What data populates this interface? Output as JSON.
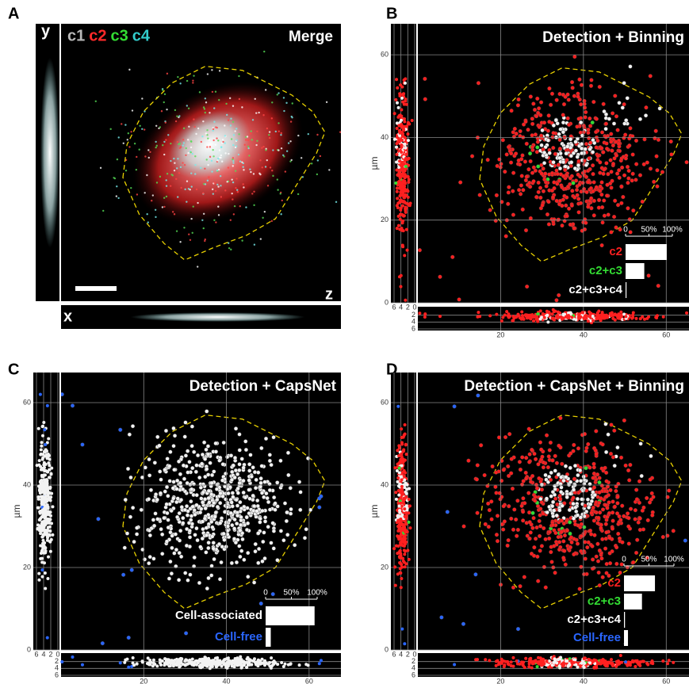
{
  "panels": [
    {
      "label": "A",
      "title": "Merge",
      "channels": [
        {
          "name": "c1",
          "color": "#b8b8b8"
        },
        {
          "name": "c2",
          "color": "#ff2a2a"
        },
        {
          "name": "c3",
          "color": "#33dd33"
        },
        {
          "name": "c4",
          "color": "#33cccc"
        }
      ],
      "y_label": "y",
      "x_label": "x",
      "z_label": "z"
    },
    {
      "label": "B",
      "title": "Detection + Binning",
      "y_axis_label": "µm",
      "xlim": [
        0,
        65.5
      ],
      "ylim": [
        0,
        67.5
      ],
      "xticks": [
        20,
        40,
        60
      ],
      "yticks": [
        0,
        20,
        40,
        60
      ],
      "zticks_side": [
        6,
        4,
        2,
        0
      ],
      "zticks_bottom": [
        2,
        4,
        6
      ],
      "inset": {
        "ticks": [
          0,
          {
            "value": 50,
            "label": "50%"
          },
          {
            "value": 100,
            "label": "100%"
          }
        ],
        "categories": [
          "c2",
          "c2+c3",
          "c2+c3+c4"
        ],
        "colors": [
          "#ff2020",
          "#33dd33",
          "#ffffff"
        ],
        "values": [
          88,
          40,
          2
        ]
      }
    },
    {
      "label": "C",
      "title": "Detection + CapsNet",
      "y_axis_label": "µm",
      "xlim": [
        0,
        67.7
      ],
      "ylim": [
        0,
        67.3
      ],
      "xticks": [
        20,
        40,
        60
      ],
      "yticks": [
        0,
        20,
        40,
        60
      ],
      "zticks_side": [
        6,
        4,
        2,
        0
      ],
      "zticks_bottom": [
        2,
        4,
        6
      ],
      "inset": {
        "ticks": [
          0,
          {
            "value": 50,
            "label": "50%"
          },
          {
            "value": 100,
            "label": "100%"
          }
        ],
        "categories": [
          "Cell-associated",
          "Cell-free"
        ],
        "colors": [
          "#ffffff",
          "#2a66ff"
        ],
        "values": [
          95,
          10
        ]
      }
    },
    {
      "label": "D",
      "title": "Detection + CapsNet + Binning",
      "y_axis_label": "µm",
      "xlim": [
        0,
        65.5
      ],
      "ylim": [
        0,
        67.3
      ],
      "xticks": [
        20,
        40,
        60
      ],
      "yticks": [
        0,
        20,
        40,
        60
      ],
      "zticks_side": [
        6,
        4,
        2,
        0
      ],
      "zticks_bottom": [
        2,
        4,
        6
      ],
      "inset": {
        "ticks": [
          0,
          {
            "value": 50,
            "label": "50%"
          },
          {
            "value": 100,
            "label": "100%"
          }
        ],
        "categories": [
          "c2",
          "c2+c3",
          "c2+c3+c4",
          "Cell-free"
        ],
        "colors": [
          "#ff2020",
          "#33dd33",
          "#ffffff",
          "#2a66ff"
        ],
        "values": [
          62,
          36,
          2,
          8
        ]
      }
    }
  ]
}
